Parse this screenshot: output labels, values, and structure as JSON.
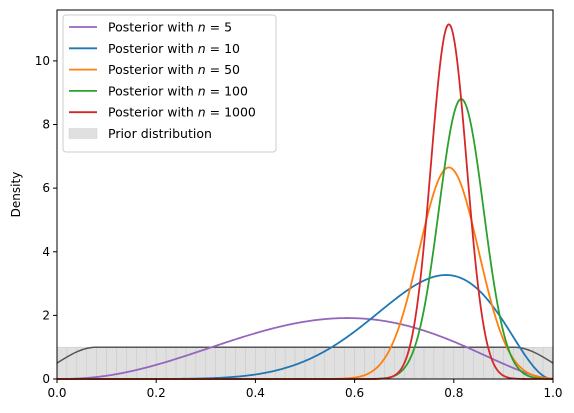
{
  "chart_data": {
    "type": "line",
    "title": "",
    "xlabel": "",
    "ylabel": "Density",
    "xlim": [
      0.0,
      1.0
    ],
    "ylim": [
      0,
      11.6
    ],
    "x_ticks": [
      "0.0",
      "0.2",
      "0.4",
      "0.6",
      "0.8",
      "1.0"
    ],
    "y_ticks": [
      "0",
      "2",
      "4",
      "6",
      "8",
      "10"
    ],
    "grid": false,
    "legend_position": "top-left",
    "series": [
      {
        "name": "Posterior with n = 5",
        "legend_prefix": "Posterior with ",
        "legend_var": "n",
        "legend_suffix": " = 5",
        "color": "#9467bd",
        "kind": "beta",
        "a": 3.4,
        "b": 2.7
      },
      {
        "name": "Posterior with n = 10",
        "legend_prefix": "Posterior with ",
        "legend_var": "n",
        "legend_suffix": " = 10",
        "color": "#1f77b4",
        "kind": "beta",
        "a": 9,
        "b": 3.2
      },
      {
        "name": "Posterior with n = 50",
        "legend_prefix": "Posterior with ",
        "legend_var": "n",
        "legend_suffix": " = 50",
        "color": "#ff7f0e",
        "kind": "normal",
        "mu": 0.79,
        "sigma": 0.06,
        "peak": 6.65
      },
      {
        "name": "Posterior with n = 100",
        "legend_prefix": "Posterior with ",
        "legend_var": "n",
        "legend_suffix": " = 100",
        "color": "#2ca02c",
        "kind": "normal",
        "mu": 0.815,
        "sigma": 0.045,
        "peak": 8.8
      },
      {
        "name": "Posterior with n = 1000",
        "legend_prefix": "Posterior with ",
        "legend_var": "n",
        "legend_suffix": " = 1000",
        "color": "#d62728",
        "kind": "normal",
        "mu": 0.79,
        "sigma": 0.036,
        "peak": 11.15
      }
    ],
    "prior": {
      "name": "Prior distribution",
      "fill_color": "#e0e0e0",
      "line_color": "#555555",
      "density": 1.0
    }
  }
}
